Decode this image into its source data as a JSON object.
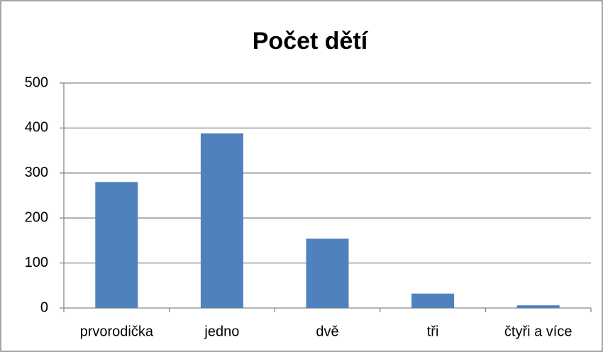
{
  "chart_data": {
    "type": "bar",
    "title": "Počet dětí",
    "categories": [
      "prvorodička",
      "jedno",
      "dvě",
      "tři",
      "čtyři a více"
    ],
    "values": [
      280,
      388,
      154,
      32,
      6
    ],
    "color": "#4f81bd",
    "ylim": [
      0,
      500
    ],
    "yticks": [
      0,
      100,
      200,
      300,
      400,
      500
    ],
    "grid": true
  }
}
